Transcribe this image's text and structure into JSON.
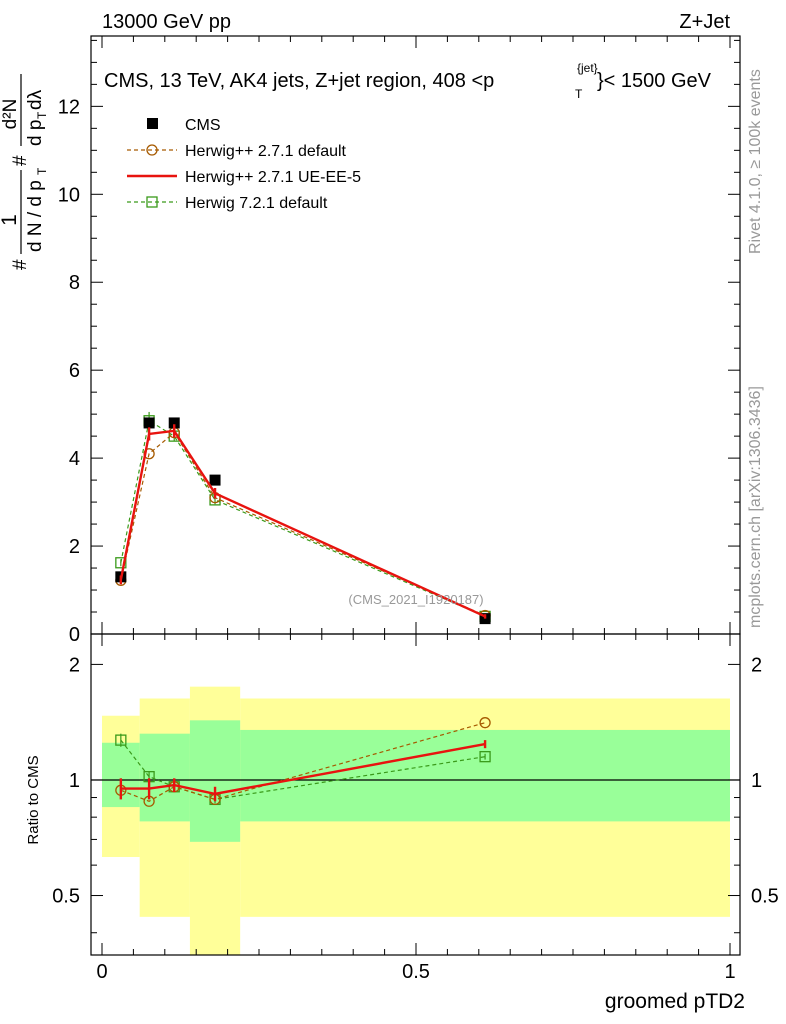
{
  "header": {
    "left": "13000 GeV pp",
    "right": "Z+Jet"
  },
  "side_labels": {
    "rivet": "Rivet 4.1.0, ≥ 100k events",
    "mcplots": "mcplots.cern.ch [arXiv:1306.3436]"
  },
  "chart_data": [
    {
      "type": "line",
      "panel": "main",
      "title": "CMS, 13 TeV, AK4 jets, Z+jet region, 408 < p_T^{jet} < 1500 GeV",
      "title_parts": {
        "prefix": "CMS, 13 TeV, AK4 jets, Z+jet region, 408 <p",
        "sup": "{jet}",
        "sub": "T",
        "suffix": "}< 1500 GeV"
      },
      "xlabel": "groomed pTD2",
      "ylabel": "1/N dN/dλ (#1 / d N / d p_T # d p_T d λ)",
      "ylabel_parts": {
        "num_frac": "1",
        "den_frac": "d N / d p",
        "sub": "T",
        "num_right": "d²N",
        "den_right": "d p",
        "lambda": "dλ",
        "hash": "#"
      },
      "xlim": [
        0,
        1
      ],
      "ylim": [
        0,
        13.6
      ],
      "yticks": [
        0,
        2,
        4,
        6,
        8,
        10,
        12
      ],
      "watermark": "(CMS_2021_I1920187)",
      "series": [
        {
          "name": "CMS",
          "style": "data",
          "x": [
            0.03,
            0.075,
            0.115,
            0.18,
            0.61
          ],
          "y": [
            1.3,
            4.8,
            4.8,
            3.5,
            0.35
          ]
        },
        {
          "name": "Herwig++ 2.7.1 default",
          "style": "dashed-circle",
          "x": [
            0.03,
            0.075,
            0.115,
            0.18,
            0.61
          ],
          "y": [
            1.22,
            4.1,
            4.58,
            3.1,
            0.42
          ]
        },
        {
          "name": "Herwig++ 2.7.1 UE-EE-5",
          "style": "solid",
          "x": [
            0.03,
            0.075,
            0.115,
            0.18,
            0.61
          ],
          "y": [
            1.23,
            4.55,
            4.62,
            3.2,
            0.4
          ],
          "err": [
            0.1,
            0.15,
            0.15,
            0.12,
            0.05
          ]
        },
        {
          "name": "Herwig 7.2.1 default",
          "style": "dashed-square",
          "x": [
            0.03,
            0.075,
            0.115,
            0.18,
            0.61
          ],
          "y": [
            1.62,
            4.85,
            4.5,
            3.05,
            0.4
          ],
          "err": [
            0.08,
            0.2,
            0.12,
            0.1,
            0.04
          ]
        }
      ]
    },
    {
      "type": "line",
      "panel": "ratio",
      "ylabel": "Ratio to CMS",
      "xlabel": "groomed pTD2",
      "xlim": [
        0,
        1
      ],
      "ylim": [
        0.35,
        2.4
      ],
      "log_y": true,
      "yticks": [
        0.5,
        1,
        2
      ],
      "xticks": [
        0,
        0.5,
        1
      ],
      "bands": [
        {
          "x0": 0.0,
          "x1": 0.06,
          "inner": [
            0.85,
            1.25
          ],
          "outer": [
            0.63,
            1.47
          ]
        },
        {
          "x0": 0.06,
          "x1": 0.14,
          "inner": [
            0.78,
            1.32
          ],
          "outer": [
            0.44,
            1.63
          ]
        },
        {
          "x0": 0.14,
          "x1": 0.22,
          "inner": [
            0.69,
            1.43
          ],
          "outer": [
            0.35,
            1.75
          ]
        },
        {
          "x0": 0.22,
          "x1": 1.0,
          "inner": [
            0.78,
            1.35
          ],
          "outer": [
            0.44,
            1.63
          ]
        }
      ],
      "series": [
        {
          "name": "Herwig++ 2.7.1 default",
          "style": "dashed-circle",
          "x": [
            0.03,
            0.075,
            0.115,
            0.18,
            0.61
          ],
          "y": [
            0.94,
            0.88,
            0.96,
            0.89,
            1.41
          ]
        },
        {
          "name": "Herwig++ 2.7.1 UE-EE-5",
          "style": "solid",
          "x": [
            0.03,
            0.075,
            0.115,
            0.18,
            0.61
          ],
          "y": [
            0.95,
            0.95,
            0.97,
            0.92,
            1.24
          ],
          "err": [
            0.06,
            0.06,
            0.04,
            0.04,
            0.03
          ]
        },
        {
          "name": "Herwig 7.2.1 default",
          "style": "dashed-square",
          "x": [
            0.03,
            0.075,
            0.115,
            0.18,
            0.61
          ],
          "y": [
            1.27,
            1.02,
            0.96,
            0.89,
            1.15
          ],
          "err": [
            0.05,
            0.03,
            0.02,
            0.02,
            0.02
          ]
        }
      ]
    }
  ],
  "colors": {
    "data": "#000000",
    "herwig_pp_default": "#a65a00",
    "herwig_pp_ueee5": "#e8130f",
    "herwig7": "#3a9a1a",
    "band_inner": "#99ff99",
    "band_outer": "#ffff99",
    "watermark": "#999999"
  }
}
